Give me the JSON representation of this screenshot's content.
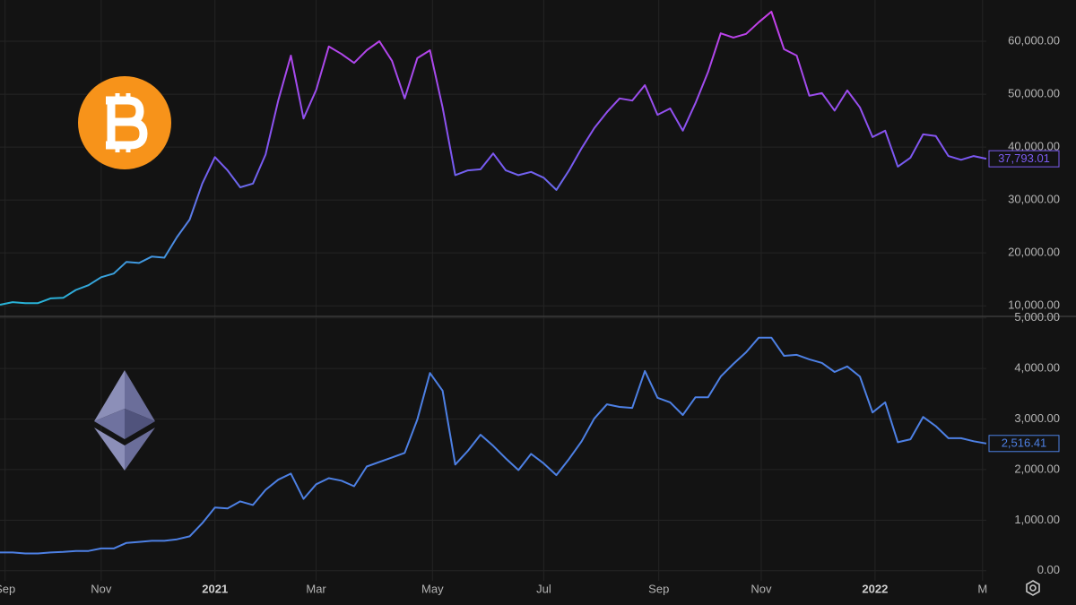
{
  "chart_data": [
    {
      "type": "line",
      "x": [
        0,
        1,
        2,
        3,
        4,
        5,
        6,
        7,
        8,
        9,
        10,
        11,
        12,
        13,
        14,
        15,
        16,
        17,
        18,
        19,
        20,
        21,
        22,
        23,
        24,
        25,
        26,
        27,
        28,
        29,
        30,
        31,
        32,
        33,
        34,
        35,
        36,
        37,
        38,
        39,
        40,
        41,
        42,
        43,
        44,
        45,
        46,
        47,
        48,
        49,
        50,
        51,
        52,
        53,
        54,
        55,
        56,
        57,
        58,
        59,
        60,
        61,
        62,
        63,
        64,
        65,
        66,
        67,
        68,
        69,
        70,
        71,
        72,
        73,
        74,
        75,
        76,
        77,
        78
      ],
      "values": [
        10200,
        10700,
        10500,
        10500,
        11400,
        11500,
        13000,
        13900,
        15400,
        16100,
        18300,
        18100,
        19300,
        19100,
        23000,
        26300,
        33100,
        38100,
        35600,
        32400,
        33100,
        38600,
        48800,
        57300,
        45400,
        50800,
        59000,
        57600,
        55900,
        58300,
        60000,
        56300,
        49200,
        56800,
        58300,
        47500,
        34700,
        35600,
        35800,
        38800,
        35600,
        34700,
        35300,
        34200,
        31900,
        35600,
        39800,
        43600,
        46600,
        49200,
        48800,
        51700,
        46100,
        47300,
        43100,
        48300,
        54200,
        61500,
        60700,
        61400,
        63600,
        65600,
        58500,
        57300,
        49700,
        50200,
        46900,
        50700,
        47500,
        41900,
        43100,
        36300,
        38000,
        42400,
        42100,
        38300,
        37600,
        38300,
        37793.01
      ],
      "value_labels": [
        null,
        null,
        null,
        null,
        null,
        null,
        null,
        null,
        null,
        null,
        null,
        null,
        null,
        null,
        null,
        null,
        null,
        null,
        null,
        null,
        null,
        null,
        null,
        null,
        null,
        null,
        null,
        null,
        null,
        null,
        null,
        null,
        null,
        null,
        null,
        null,
        null,
        null,
        null,
        null,
        null,
        null,
        null,
        null,
        null,
        null,
        null,
        null,
        null,
        null,
        null,
        null,
        null,
        null,
        null,
        null,
        null,
        null,
        null,
        null,
        null,
        null,
        null,
        null,
        null,
        null,
        null,
        null,
        null,
        null,
        null,
        null,
        null,
        null,
        null,
        null,
        null,
        null,
        "37,793.01"
      ],
      "colors": [
        "#c93ee8",
        "#7a58f2",
        "#25b6d6"
      ],
      "label_color": "#7c5cf2",
      "xlim": [
        0,
        78
      ],
      "ylim": [
        8000,
        67800
      ],
      "yticks": [
        {
          "value": 10000,
          "label": "10,000.00"
        },
        {
          "value": 20000,
          "label": "20,000.00"
        },
        {
          "value": 30000,
          "label": "30,000.00"
        },
        {
          "value": 40000,
          "label": "40,000.00"
        },
        {
          "value": 50000,
          "label": "50,000.00"
        },
        {
          "value": 60000,
          "label": "60,000.00"
        }
      ],
      "grid": true
    },
    {
      "type": "line",
      "x": [
        0,
        1,
        2,
        3,
        4,
        5,
        6,
        7,
        8,
        9,
        10,
        11,
        12,
        13,
        14,
        15,
        16,
        17,
        18,
        19,
        20,
        21,
        22,
        23,
        24,
        25,
        26,
        27,
        28,
        29,
        30,
        31,
        32,
        33,
        34,
        35,
        36,
        37,
        38,
        39,
        40,
        41,
        42,
        43,
        44,
        45,
        46,
        47,
        48,
        49,
        50,
        51,
        52,
        53,
        54,
        55,
        56,
        57,
        58,
        59,
        60,
        61,
        62,
        63,
        64,
        65,
        66,
        67,
        68,
        69,
        70,
        71,
        72,
        73,
        74,
        75,
        76,
        77,
        78
      ],
      "values": [
        360,
        360,
        340,
        340,
        360,
        370,
        390,
        390,
        440,
        440,
        550,
        570,
        590,
        590,
        620,
        680,
        940,
        1250,
        1230,
        1370,
        1300,
        1600,
        1800,
        1920,
        1420,
        1710,
        1830,
        1780,
        1670,
        2060,
        2150,
        2240,
        2330,
        2990,
        3910,
        3560,
        2100,
        2370,
        2690,
        2470,
        2220,
        1990,
        2310,
        2120,
        1890,
        2210,
        2560,
        3010,
        3290,
        3240,
        3220,
        3950,
        3420,
        3330,
        3080,
        3430,
        3430,
        3840,
        4090,
        4320,
        4610,
        4610,
        4250,
        4270,
        4180,
        4110,
        3930,
        4040,
        3840,
        3130,
        3330,
        2540,
        2600,
        3040,
        2860,
        2620,
        2620,
        2560,
        2516.41
      ],
      "value_labels": [
        null,
        null,
        null,
        null,
        null,
        null,
        null,
        null,
        null,
        null,
        null,
        null,
        null,
        null,
        null,
        null,
        null,
        null,
        null,
        null,
        null,
        null,
        null,
        null,
        null,
        null,
        null,
        null,
        null,
        null,
        null,
        null,
        null,
        null,
        null,
        null,
        null,
        null,
        null,
        null,
        null,
        null,
        null,
        null,
        null,
        null,
        null,
        null,
        null,
        null,
        null,
        null,
        null,
        null,
        null,
        null,
        null,
        null,
        null,
        null,
        null,
        null,
        null,
        null,
        null,
        null,
        null,
        null,
        null,
        null,
        null,
        null,
        null,
        null,
        null,
        null,
        null,
        null,
        "2,516.41"
      ],
      "color": "#4d80e4",
      "xlim": [
        0,
        78
      ],
      "ylim": [
        -200,
        5030
      ],
      "xticks": [
        {
          "value": 0.4,
          "label": "Sep"
        },
        {
          "value": 8.0,
          "label": "Nov"
        },
        {
          "value": 17.0,
          "label": "2021"
        },
        {
          "value": 25.0,
          "label": "Mar"
        },
        {
          "value": 34.2,
          "label": "May"
        },
        {
          "value": 43.0,
          "label": "Jul"
        },
        {
          "value": 52.1,
          "label": "Sep"
        },
        {
          "value": 60.2,
          "label": "Nov"
        },
        {
          "value": 69.2,
          "label": "2022"
        },
        {
          "value": 77.7,
          "label": "M"
        }
      ],
      "yticks": [
        {
          "value": 0,
          "label": "0.00"
        },
        {
          "value": 1000,
          "label": "1,000.00"
        },
        {
          "value": 2000,
          "label": "2,000.00"
        },
        {
          "value": 3000,
          "label": "3,000.00"
        },
        {
          "value": 4000,
          "label": "4,000.00"
        },
        {
          "value": 5000,
          "label": "5,000.00"
        }
      ],
      "grid": true
    }
  ]
}
